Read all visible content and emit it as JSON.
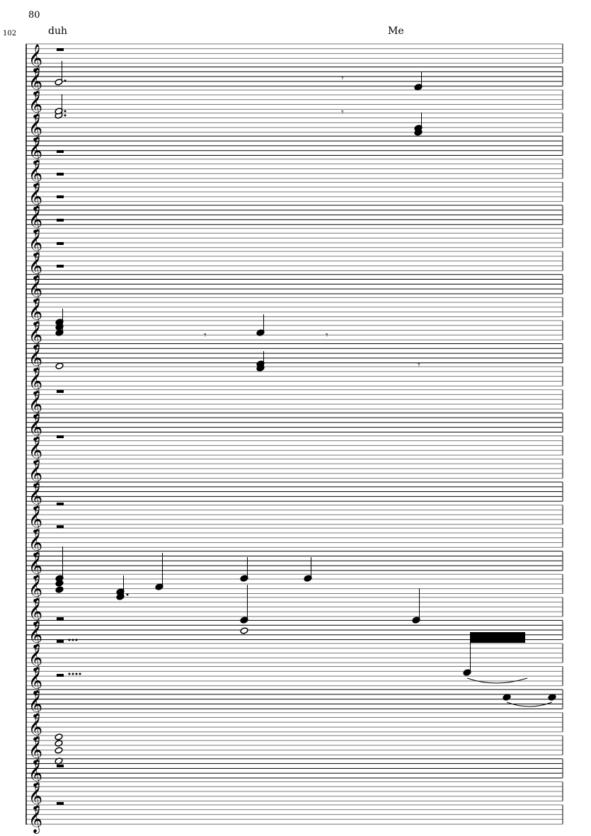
{
  "score": {
    "measure_number": "80",
    "system_number": "102",
    "markups": [
      "duh",
      "Me"
    ],
    "clef": "treble-clef-icon",
    "staff_count": 34
  }
}
